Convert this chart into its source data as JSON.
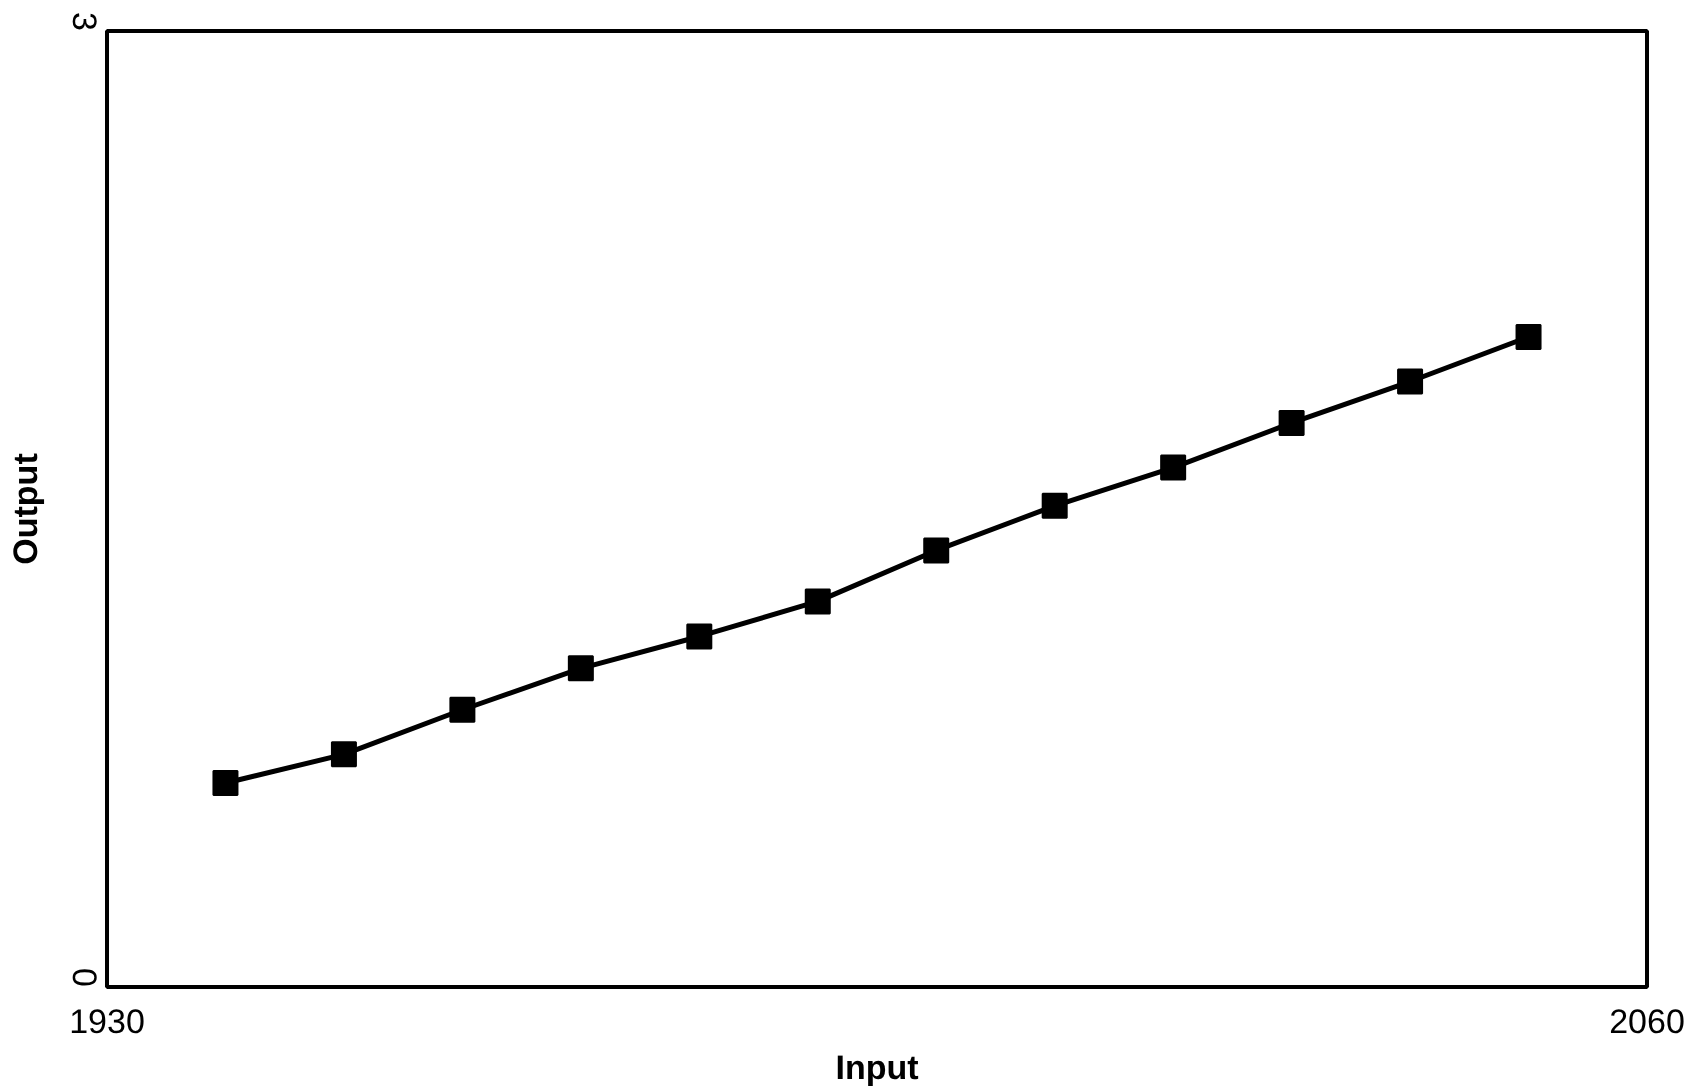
{
  "chart_data": {
    "type": "line",
    "xlabel": "Input",
    "ylabel": "Output",
    "x": [
      1940,
      1950,
      1960,
      1970,
      1980,
      1990,
      2000,
      2010,
      2020,
      2030,
      2040,
      2050
    ],
    "series": [
      {
        "color": "#000000",
        "values": [
          0.64,
          0.73,
          0.87,
          1.0,
          1.1,
          1.21,
          1.37,
          1.51,
          1.63,
          1.77,
          1.9,
          2.04
        ]
      }
    ],
    "xlim": [
      1930,
      2060
    ],
    "ylim": [
      0,
      3
    ],
    "xticks": [
      1930,
      2060
    ],
    "yticks": [
      0,
      3
    ],
    "marker": "square",
    "line_style": "solid"
  }
}
